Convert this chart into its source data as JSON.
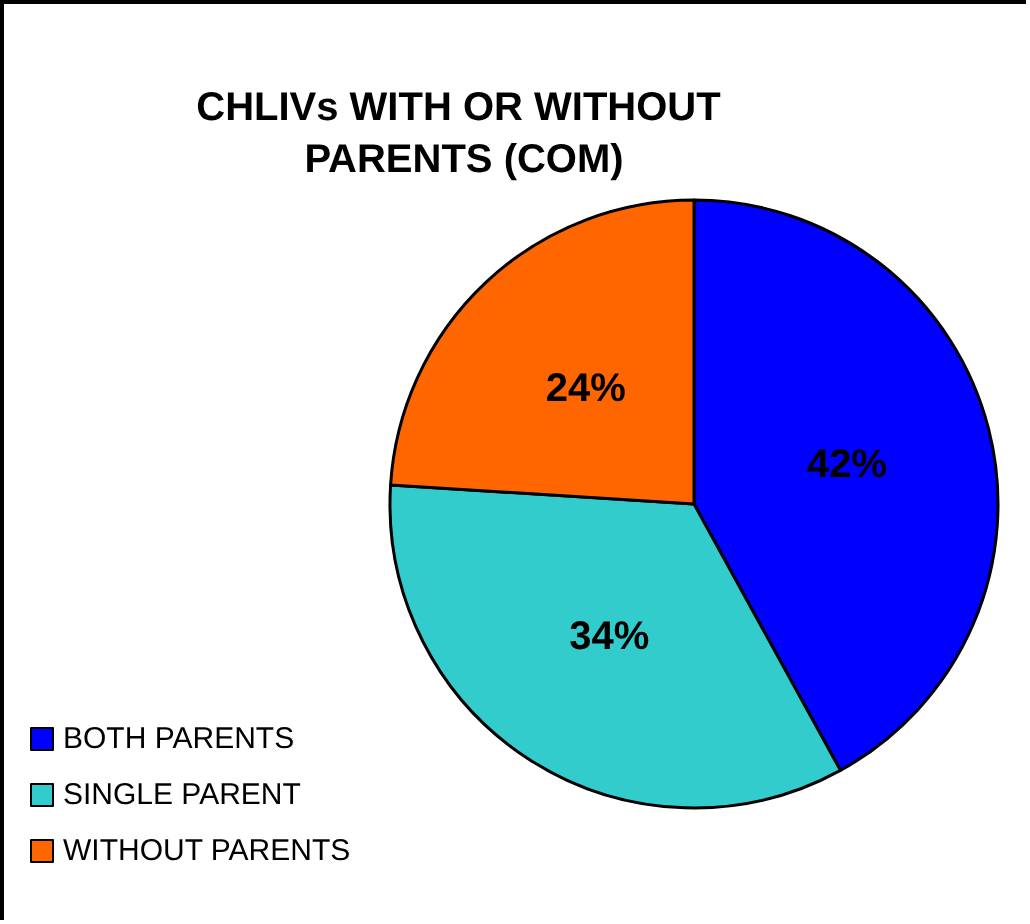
{
  "chart_data": {
    "type": "pie",
    "title": "CHLIVs WITH OR WITHOUT PARENTS (COM)",
    "categories": [
      "BOTH PARENTS",
      "SINGLE PARENT",
      "WITHOUT PARENTS"
    ],
    "values": [
      42,
      34,
      24
    ],
    "colors": [
      "#0000ff",
      "#33cccc",
      "#ff6600"
    ],
    "value_labels": [
      "42%",
      "34%",
      "24%"
    ],
    "legend": "bottom left"
  }
}
